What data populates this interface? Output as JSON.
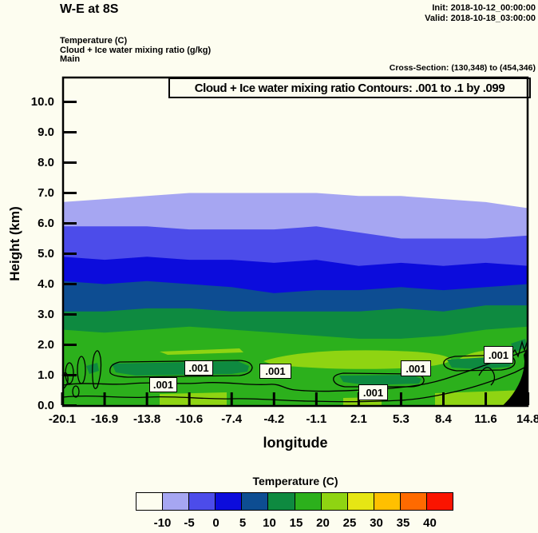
{
  "page": {
    "bg": "#fdfdf0"
  },
  "header": {
    "title": "W-E at 8S",
    "init": "Init: 2018-10-12_00:00:00",
    "valid": "Valid: 2018-10-18_03:00:00",
    "fields": [
      "Temperature  (C)",
      "Cloud + Ice water mixing ratio  (g/kg)",
      "Main"
    ],
    "cross_section": "Cross-Section: (130,348) to (454,346)"
  },
  "chart_data": {
    "type": "area",
    "title": "Cloud + Ice water mixing ratio Contours: .001 to .1 by .099",
    "xlabel": "longitude",
    "ylabel": "Height (km)",
    "x_tick_labels": [
      "-20.1",
      "-16.9",
      "-13.8",
      "-10.6",
      "-7.4",
      "-4.2",
      "-1.1",
      "2.1",
      "5.3",
      "8.4",
      "11.6",
      "14.8"
    ],
    "y_tick_labels": [
      "0.0",
      "1.0",
      "2.0",
      "3.0",
      "4.0",
      "5.0",
      "6.0",
      "7.0",
      "8.0",
      "9.0",
      "10.0"
    ],
    "xlim": [
      -20.1,
      14.8
    ],
    "ylim": [
      0,
      10.8
    ],
    "grid": false,
    "legend_position": "bottom colorbar",
    "isotherm_boundaries": {
      "description": "Height (km) of filled temperature-band boundaries sampled at each longitude tick; area below each boundary is filled with color_below",
      "longitudes": [
        -20.1,
        -16.9,
        -13.8,
        -10.6,
        -7.4,
        -4.2,
        -1.1,
        2.1,
        5.3,
        8.4,
        11.6,
        14.8
      ],
      "series": [
        {
          "name": "-10 C boundary",
          "color_below": "#a6a6f2",
          "heights_km": [
            6.7,
            6.8,
            6.9,
            7.0,
            7.0,
            7.0,
            7.0,
            6.9,
            6.9,
            6.8,
            6.7,
            6.5
          ]
        },
        {
          "name": "-5 C boundary",
          "color_below": "#4c4cea",
          "heights_km": [
            5.9,
            5.9,
            5.9,
            5.8,
            5.8,
            5.8,
            5.9,
            5.7,
            5.5,
            5.5,
            5.5,
            5.6
          ]
        },
        {
          "name": "0 C boundary",
          "color_below": "#0c0cdc",
          "heights_km": [
            4.9,
            4.8,
            4.9,
            4.8,
            4.8,
            4.7,
            4.8,
            4.6,
            4.7,
            4.6,
            4.7,
            4.6
          ]
        },
        {
          "name": "5 C boundary",
          "color_below": "#0d4d92",
          "heights_km": [
            4.1,
            4.0,
            4.1,
            4.0,
            3.9,
            3.7,
            3.8,
            3.8,
            3.9,
            3.8,
            3.9,
            4.0
          ]
        },
        {
          "name": "10 C boundary",
          "color_below": "#0e8a40",
          "heights_km": [
            3.1,
            3.1,
            3.2,
            3.2,
            3.1,
            3.1,
            3.1,
            3.1,
            3.2,
            3.1,
            3.3,
            3.3
          ]
        },
        {
          "name": "15 C boundary",
          "color_below": "#2cb01c",
          "heights_km": [
            2.5,
            2.4,
            2.5,
            2.6,
            2.5,
            2.4,
            2.3,
            2.2,
            2.2,
            2.3,
            2.5,
            2.6
          ]
        }
      ]
    },
    "cloud_contour": {
      "label": ".001",
      "levels_g_per_kg": [
        0.001,
        0.1
      ],
      "label_count": 6,
      "layer": "shallow cloud layer between ~0.3 and ~1.5 km"
    },
    "colorbar": {
      "title": "Temperature  (C)",
      "tick_labels": [
        "-10",
        "-5",
        "0",
        "5",
        "10",
        "15",
        "20",
        "25",
        "30",
        "35",
        "40"
      ],
      "colors": [
        "#fdfdf0",
        "#a6a6f2",
        "#4c4cea",
        "#0c0cdc",
        "#0d4d92",
        "#0e8a40",
        "#2cb01c",
        "#8fd412",
        "#e6e614",
        "#ffc000",
        "#ff6a00",
        "#fa1400"
      ]
    }
  }
}
